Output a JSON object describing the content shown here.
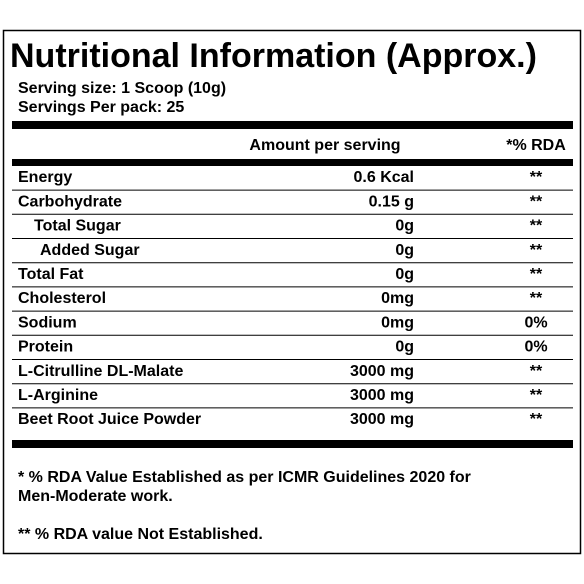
{
  "title": "Nutritional Information (Approx.)",
  "serving": [
    "Serving size: 1 Scoop  (10g)",
    "Servings Per pack: 25"
  ],
  "table": {
    "header": [
      "Amount per serving",
      "*% RDA"
    ],
    "rows": [
      [
        "Energy",
        "0.6 Kcal",
        "**"
      ],
      [
        "Carbohydrate",
        "0.15 g",
        "**"
      ],
      [
        "Total Sugar",
        "0g",
        "**"
      ],
      [
        "Added Sugar",
        "0g",
        "**"
      ],
      [
        "Total Fat",
        "0g",
        "**"
      ],
      [
        "Cholesterol",
        "0mg",
        "**"
      ],
      [
        "Sodium",
        "0mg",
        "0%"
      ],
      [
        "Protein",
        "0g",
        "0%"
      ],
      [
        "L-Citrulline DL-Malate",
        "3000 mg",
        "**"
      ],
      [
        "L-Arginine",
        "3000 mg",
        "**"
      ],
      [
        "Beet Root Juice Powder",
        "3000 mg",
        "**"
      ]
    ]
  },
  "footnotes": [
    "* % RDA Value Established as per ICMR Guidelines 2020 for",
    "Men-Moderate work.",
    "** % RDA value Not Established."
  ]
}
